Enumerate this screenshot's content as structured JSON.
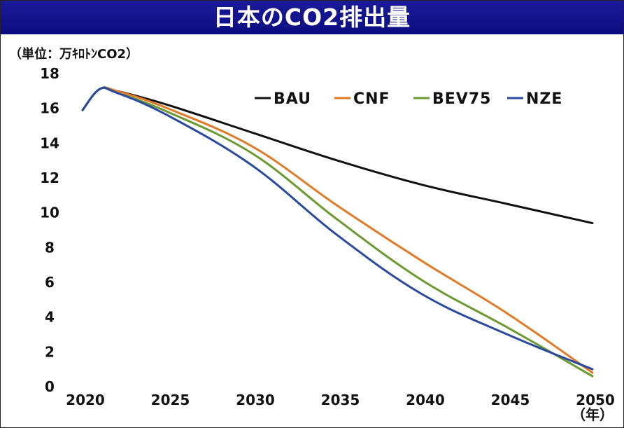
{
  "chart_data": {
    "type": "line",
    "title": "日本のCO2排出量",
    "ylabel": "（単位：万ｷﾛﾄﾝCO2）",
    "xlabel": "（年）",
    "ylim": [
      0,
      18
    ],
    "xlim": [
      2020,
      2050
    ],
    "y_ticks": [
      0,
      2,
      4,
      6,
      8,
      10,
      12,
      14,
      16,
      18
    ],
    "x_ticks": [
      2020,
      2025,
      2030,
      2035,
      2040,
      2045,
      2050
    ],
    "grid": false,
    "legend_position": "top-right",
    "x": [
      2020,
      2021,
      2022,
      2025,
      2030,
      2035,
      2040,
      2045,
      2050
    ],
    "series": [
      {
        "name": "BAU",
        "color": "#111111",
        "values": [
          15.9,
          17.1,
          17.0,
          16.2,
          14.6,
          13.0,
          11.6,
          10.5,
          9.4
        ]
      },
      {
        "name": "CNF",
        "color": "#e07a26",
        "values": [
          15.9,
          17.1,
          17.0,
          16.0,
          13.8,
          10.4,
          7.2,
          4.2,
          0.8
        ]
      },
      {
        "name": "BEV75",
        "color": "#6b9a30",
        "values": [
          15.9,
          17.1,
          16.9,
          15.8,
          13.4,
          9.6,
          6.1,
          3.4,
          0.6
        ]
      },
      {
        "name": "NZE",
        "color": "#2a4aa0",
        "values": [
          15.9,
          17.1,
          16.9,
          15.6,
          12.7,
          8.7,
          5.3,
          3.0,
          1.0
        ]
      }
    ]
  }
}
